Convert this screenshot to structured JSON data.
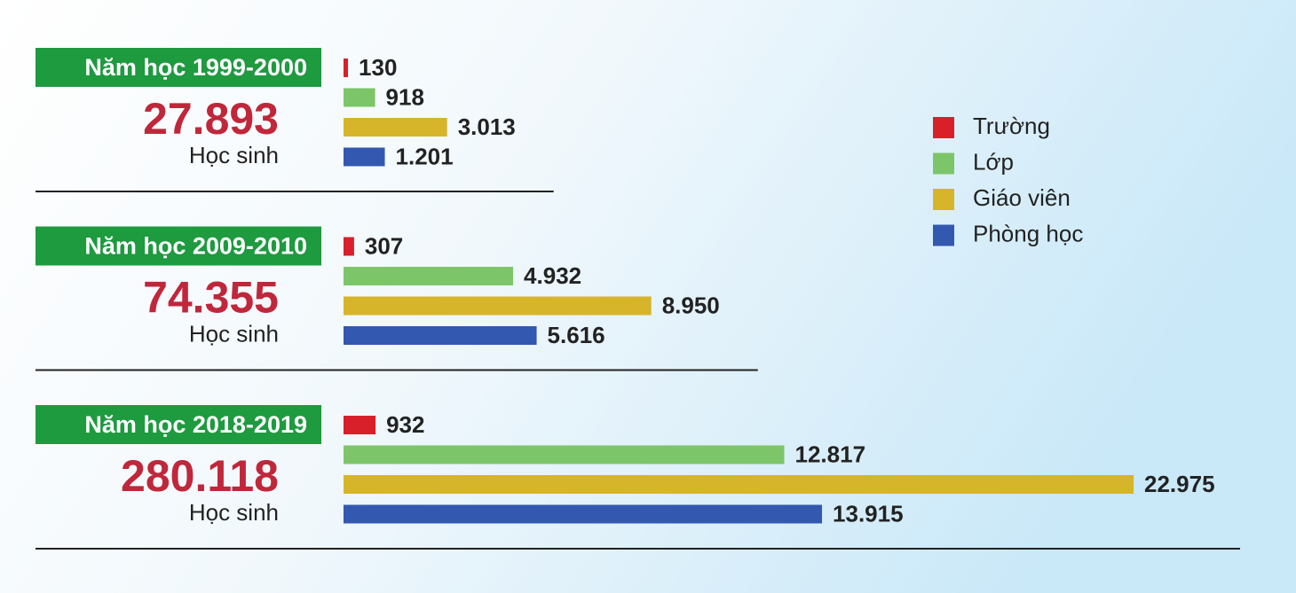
{
  "chart_data": {
    "type": "bar",
    "orientation": "horizontal",
    "categories": [
      "Năm học 1999-2000",
      "Năm học 2009-2010",
      "Năm học 2018-2019"
    ],
    "students": {
      "label": "Học sinh",
      "values": [
        27893,
        74355,
        280118
      ],
      "value_labels": [
        "27.893",
        "74.355",
        "280.118"
      ]
    },
    "series": [
      {
        "name": "Trường",
        "color": "#d7202a",
        "values": [
          130,
          307,
          932
        ],
        "value_labels": [
          "130",
          "307",
          "932"
        ]
      },
      {
        "name": "Lớp",
        "color": "#7dc569",
        "values": [
          918,
          4932,
          12817
        ],
        "value_labels": [
          "918",
          "4.932",
          "12.817"
        ]
      },
      {
        "name": "Giáo viên",
        "color": "#d6b52a",
        "values": [
          3013,
          8950,
          22975
        ],
        "value_labels": [
          "3.013",
          "8.950",
          "22.975"
        ]
      },
      {
        "name": "Phòng học",
        "color": "#3358b0",
        "values": [
          1201,
          5616,
          13915
        ],
        "value_labels": [
          "1.201",
          "5.616",
          "13.915"
        ]
      }
    ],
    "legend": "right"
  }
}
